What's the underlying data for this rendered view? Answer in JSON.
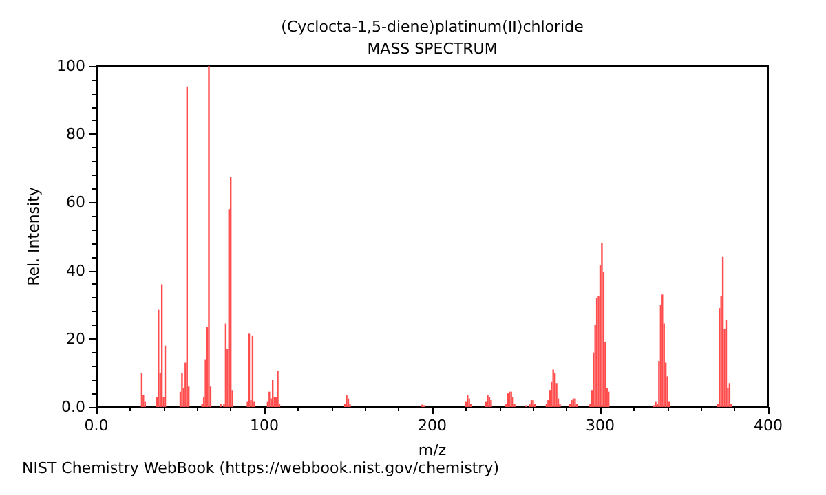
{
  "chart_data": {
    "type": "bar",
    "title": "(Cyclocta-1,5-diene)platinum(II)chloride",
    "subtitle": "MASS SPECTRUM",
    "xlabel": "m/z",
    "ylabel": "Rel. Intensity",
    "annotations": [
      "NIST Chemistry WebBook (https://webbook.nist.gov/chemistry)"
    ],
    "x": [
      27,
      28,
      29,
      36,
      37,
      38,
      39,
      40,
      41,
      50,
      51,
      52,
      53,
      54,
      55,
      63,
      64,
      65,
      66,
      67,
      68,
      74,
      76,
      77,
      78,
      79,
      80,
      81,
      90,
      91,
      92,
      93,
      94,
      102,
      103,
      104,
      105,
      106,
      107,
      108,
      109,
      148,
      149,
      150,
      151,
      194,
      195,
      208,
      220,
      221,
      222,
      223,
      232,
      233,
      234,
      235,
      244,
      245,
      246,
      247,
      248,
      249,
      256,
      258,
      259,
      260,
      261,
      268,
      269,
      270,
      271,
      272,
      273,
      274,
      275,
      276,
      282,
      283,
      284,
      285,
      286,
      294,
      295,
      296,
      297,
      298,
      299,
      300,
      301,
      302,
      303,
      304,
      305,
      332,
      333,
      334,
      335,
      336,
      337,
      338,
      339,
      340,
      341,
      370,
      371,
      372,
      373,
      374,
      375,
      376,
      377,
      378
    ],
    "series": [
      {
        "color": "#ff4d4d",
        "values": [
          10,
          3.5,
          1.5,
          3,
          28.5,
          10,
          36,
          3,
          18,
          4.5,
          10,
          5.5,
          13,
          94,
          6,
          1,
          3,
          14,
          23.5,
          100,
          6,
          1,
          1,
          24.5,
          17,
          58,
          67.5,
          5,
          1.5,
          21.5,
          2,
          21,
          1.5,
          1.5,
          4.5,
          2.5,
          8,
          3,
          3,
          10.5,
          1,
          1,
          3.5,
          2.5,
          1,
          0.7,
          0.5,
          null,
          1.5,
          3.5,
          2.5,
          1,
          1.5,
          3.5,
          3,
          2,
          1,
          4,
          4.5,
          4.5,
          3,
          1,
          0.5,
          1,
          2,
          2,
          1,
          1,
          2,
          5,
          7.5,
          11,
          10,
          7,
          2.5,
          1,
          1,
          2,
          2.5,
          2.5,
          1,
          1,
          5,
          16,
          24,
          32,
          32.5,
          41.5,
          48,
          39.5,
          19,
          5.5,
          4.5,
          0.5,
          1.5,
          1,
          13.5,
          30,
          33,
          24.5,
          13,
          9,
          1.5,
          1,
          29,
          32.5,
          44,
          23,
          25.5,
          5.5,
          7,
          1
        ]
      }
    ],
    "xlim": [
      0,
      400
    ],
    "xticks": [
      {
        "value": 0,
        "label": "0.0"
      },
      100,
      200,
      300,
      400
    ],
    "ylim": [
      0,
      100
    ],
    "yticks": [
      {
        "value": 0,
        "label": "0.0"
      },
      20,
      40,
      60,
      80,
      100
    ],
    "grid": false
  }
}
